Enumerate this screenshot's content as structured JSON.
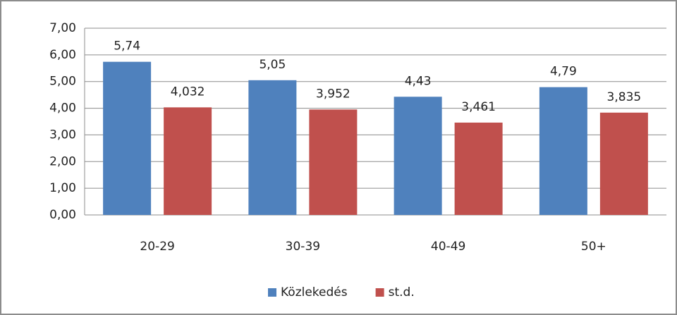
{
  "chart_data": {
    "type": "bar",
    "categories": [
      "20-29",
      "30-39",
      "40-49",
      "50+"
    ],
    "series": [
      {
        "name": "Közlekedés",
        "color": "#4f81bd",
        "values": [
          5.74,
          5.05,
          4.43,
          4.79
        ],
        "value_labels": [
          "5,74",
          "5,05",
          "4,43",
          "4,79"
        ]
      },
      {
        "name": "st.d.",
        "color": "#c0504d",
        "values": [
          4.032,
          3.952,
          3.461,
          3.835
        ],
        "value_labels": [
          "4,032",
          "3,952",
          "3,461",
          "3,835"
        ]
      }
    ],
    "ylim": [
      0,
      7
    ],
    "yticks": [
      {
        "value": 0,
        "label": "0,00"
      },
      {
        "value": 1,
        "label": "1,00"
      },
      {
        "value": 2,
        "label": "2,00"
      },
      {
        "value": 3,
        "label": "3,00"
      },
      {
        "value": 4,
        "label": "4,00"
      },
      {
        "value": 5,
        "label": "5,00"
      },
      {
        "value": 6,
        "label": "6,00"
      },
      {
        "value": 7,
        "label": "7,00"
      }
    ],
    "grid": true,
    "legend": "bottom"
  }
}
